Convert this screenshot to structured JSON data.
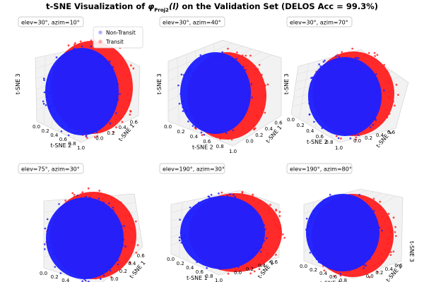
{
  "chart_data": {
    "type": "scatter",
    "title_prefix": "t-SNE Visualization of ",
    "title_phi": "φ",
    "title_sub": "Proj2",
    "title_arg": "(l)",
    "title_suffix": " on the Validation Set (DELOS Acc = 99.3%)",
    "series": [
      {
        "name": "Non-Transit",
        "color": "#1f1fff"
      },
      {
        "name": "Transit",
        "color": "#ff1f1f"
      }
    ],
    "axes": {
      "x": "t-SNE 1",
      "y": "t-SNE 2",
      "z": "t-SNE 3",
      "range": [
        0,
        1
      ]
    },
    "legend": {
      "placement": "upper-right of first subplot"
    },
    "subplots": [
      {
        "view": "elev=30°, azim=10°",
        "visible_axes": [
          "t-SNE 2",
          "t-SNE 1",
          "t-SNE 3"
        ]
      },
      {
        "view": "elev=30°, azim=40°",
        "visible_axes": [
          "t-SNE 2",
          "t-SNE 1",
          "t-SNE 3"
        ]
      },
      {
        "view": "elev=30°, azim=70°",
        "visible_axes": [
          "t-SNE 2",
          "t-SNE 1",
          "t-SNE 3"
        ]
      },
      {
        "view": "elev=75°, azim=30°",
        "visible_axes": [
          "t-SNE 2",
          "t-SNE 1"
        ]
      },
      {
        "view": "elev=190°, azim=30°",
        "visible_axes": [
          "t-SNE 1",
          "t-SNE 2"
        ]
      },
      {
        "view": "elev=190°, azim=80°",
        "visible_axes": [
          "t-SNE 1",
          "t-SNE 2",
          "t-SNE 3"
        ]
      }
    ],
    "tick_values": [
      "0.0",
      "0.2",
      "0.4",
      "0.6",
      "0.8",
      "1.0"
    ],
    "grid": true
  }
}
